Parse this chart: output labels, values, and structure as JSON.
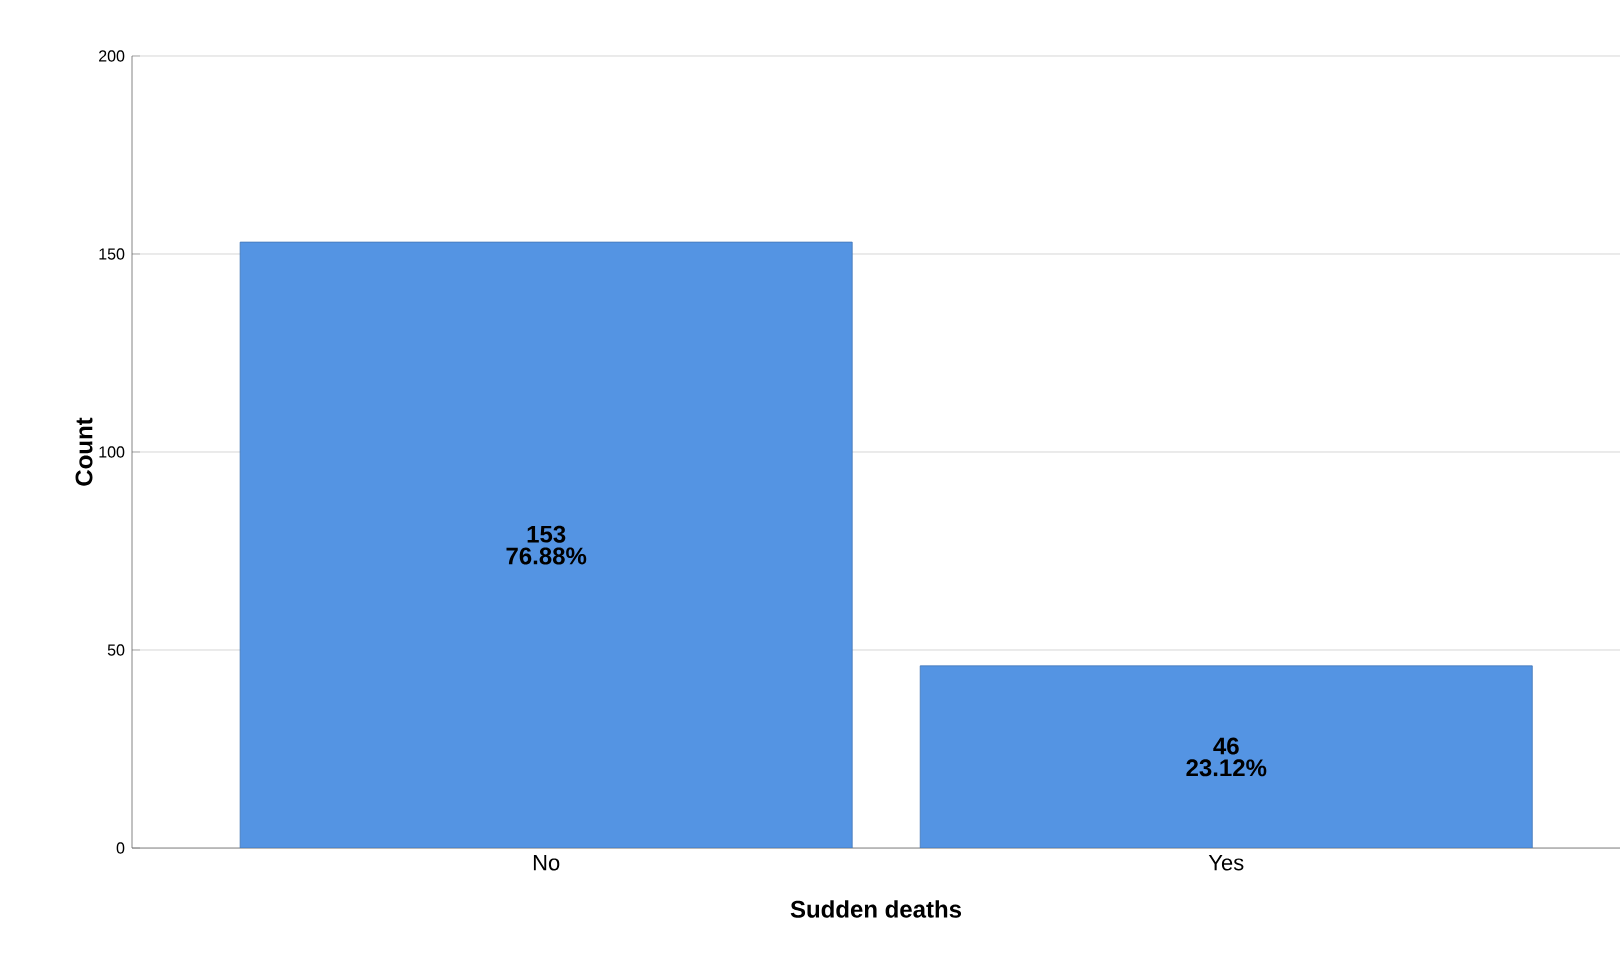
{
  "chart_data": {
    "type": "bar",
    "xlabel": "Sudden deaths",
    "ylabel": "Count",
    "categories": [
      "No",
      "Yes"
    ],
    "values": [
      153,
      46
    ],
    "color": "#5494e3",
    "ylim": [
      0,
      200
    ],
    "yticks": [
      0,
      50,
      100,
      150,
      200
    ],
    "grid": "y",
    "data_labels": true,
    "annotations": [
      "76.88%",
      "23.12%"
    ]
  }
}
